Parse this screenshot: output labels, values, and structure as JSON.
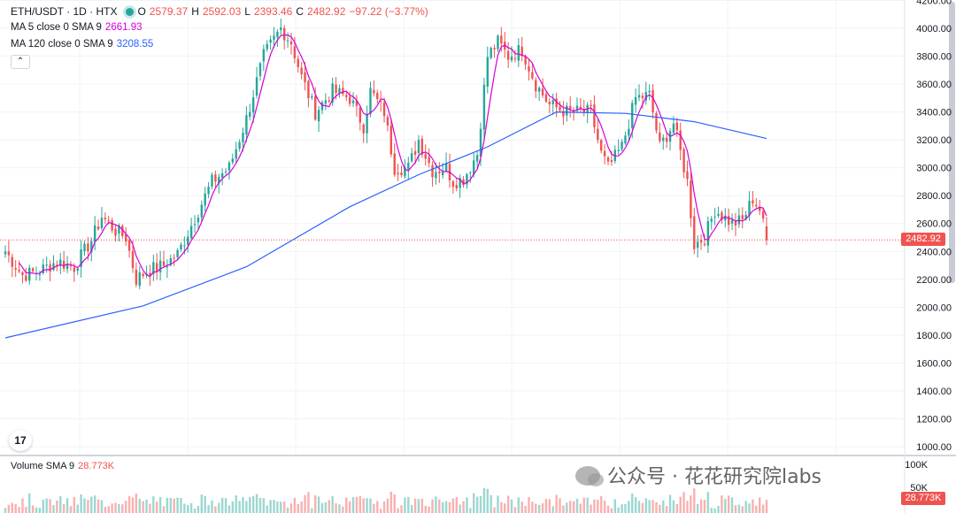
{
  "header": {
    "symbol": "ETH/USDT · 1D · HTX",
    "open_label": "O",
    "open": "2579.37",
    "high_label": "H",
    "high": "2592.03",
    "low_label": "L",
    "low": "2393.46",
    "close_label": "C",
    "close": "2482.92",
    "change": "−97.22 (−3.77%)",
    "ma5_label": "MA 5 close 0 SMA 9",
    "ma5_value": "2661.93",
    "ma120_label": "MA 120 close 0 SMA 9",
    "ma120_value": "3208.55",
    "collapse_icon": "chevron-up-icon"
  },
  "volume_pane": {
    "label": "Volume SMA 9",
    "value": "28.773K",
    "axis_ticks": [
      "100K",
      "50K"
    ]
  },
  "price_axis": {
    "ticks": [
      "1000.00",
      "1200.00",
      "1400.00",
      "1600.00",
      "1800.00",
      "2000.00",
      "2200.00",
      "2400.00",
      "2600.00",
      "2800.00",
      "3000.00",
      "3200.00",
      "3400.00",
      "3600.00",
      "3800.00",
      "4000.00",
      "4200.00"
    ],
    "last_price_label": "2482.92"
  },
  "watermark": {
    "text": "公众号 · 花花研究院labs",
    "icon": "wechat-icon"
  },
  "logo_text": "17",
  "colors": {
    "up": "#26a69a",
    "down": "#ef5350",
    "ma5": "#d500d9",
    "ma120": "#2962ff",
    "grid": "#f0f3fa"
  },
  "chart_data": {
    "type": "candlestick",
    "ylim": [
      1000,
      4200
    ],
    "volume_ylim": [
      0,
      100000
    ],
    "last_price": 2482.92,
    "anchors": [
      [
        0,
        2400
      ],
      [
        5,
        2230
      ],
      [
        10,
        2260
      ],
      [
        15,
        2330
      ],
      [
        20,
        2290
      ],
      [
        25,
        2480
      ],
      [
        28,
        2650
      ],
      [
        32,
        2550
      ],
      [
        35,
        2500
      ],
      [
        38,
        2200
      ],
      [
        41,
        2260
      ],
      [
        46,
        2300
      ],
      [
        50,
        2380
      ],
      [
        55,
        2640
      ],
      [
        60,
        2900
      ],
      [
        65,
        3000
      ],
      [
        70,
        3350
      ],
      [
        75,
        3800
      ],
      [
        80,
        4000
      ],
      [
        83,
        3900
      ],
      [
        86,
        3650
      ],
      [
        90,
        3400
      ],
      [
        95,
        3550
      ],
      [
        100,
        3500
      ],
      [
        104,
        3300
      ],
      [
        106,
        3550
      ],
      [
        110,
        3400
      ],
      [
        113,
        3000
      ],
      [
        117,
        3000
      ],
      [
        120,
        3200
      ],
      [
        124,
        2980
      ],
      [
        128,
        3000
      ],
      [
        130,
        2900
      ],
      [
        133,
        2920
      ],
      [
        137,
        3100
      ],
      [
        140,
        3800
      ],
      [
        143,
        3900
      ],
      [
        146,
        3800
      ],
      [
        150,
        3850
      ],
      [
        154,
        3600
      ],
      [
        158,
        3450
      ],
      [
        163,
        3400
      ],
      [
        167,
        3400
      ],
      [
        170,
        3400
      ],
      [
        173,
        3100
      ],
      [
        175,
        3000
      ],
      [
        179,
        3150
      ],
      [
        183,
        3500
      ],
      [
        187,
        3520
      ],
      [
        190,
        3150
      ],
      [
        194,
        3320
      ],
      [
        198,
        2900
      ],
      [
        200,
        2450
      ],
      [
        203,
        2500
      ],
      [
        206,
        2700
      ],
      [
        211,
        2600
      ],
      [
        214,
        2620
      ],
      [
        217,
        2780
      ],
      [
        219,
        2700
      ],
      [
        221,
        2482.92
      ]
    ],
    "ma120": [
      [
        0,
        1780
      ],
      [
        40,
        2010
      ],
      [
        70,
        2290
      ],
      [
        100,
        2720
      ],
      [
        120,
        2950
      ],
      [
        140,
        3150
      ],
      [
        160,
        3400
      ],
      [
        180,
        3390
      ],
      [
        200,
        3330
      ],
      [
        221,
        3210
      ]
    ]
  }
}
